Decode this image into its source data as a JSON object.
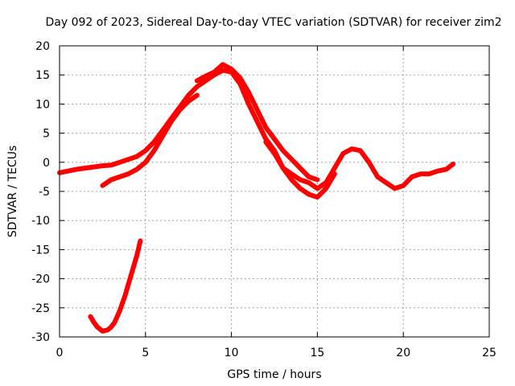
{
  "chart_data": {
    "type": "line",
    "title": "Day 092 of 2023, Sidereal Day-to-day VTEC variation (SDTVAR) for receiver zim2",
    "xlabel": "GPS time / hours",
    "ylabel": "SDTVAR / TECUs",
    "xlim": [
      0,
      25
    ],
    "ylim": [
      -30,
      20
    ],
    "xticks": [
      0,
      5,
      10,
      15,
      20,
      25
    ],
    "yticks": [
      -30,
      -25,
      -20,
      -15,
      -10,
      -5,
      0,
      5,
      10,
      15,
      20
    ],
    "grid": true,
    "color": "#ff0000",
    "series": [
      {
        "name": "track-main",
        "x": [
          0,
          0.5,
          1,
          1.5,
          2,
          2.5,
          3,
          3.5,
          4,
          4.5,
          5,
          5.5,
          6,
          6.5,
          7,
          7.5,
          8,
          8.5,
          9,
          9.5,
          10,
          10.5,
          11,
          11.5,
          12,
          12.5,
          13,
          13.5,
          14,
          14.5,
          15,
          15.5,
          16,
          16.5,
          17,
          17.5,
          18,
          18.5,
          19,
          19.5,
          20,
          20.5,
          21,
          21.5,
          22,
          22.5,
          22.9
        ],
        "y": [
          -1.8,
          -1.5,
          -1.2,
          -1.0,
          -0.8,
          -0.6,
          -0.5,
          0,
          0.5,
          1.0,
          2.0,
          3.5,
          5.5,
          7.5,
          9.5,
          11.5,
          13,
          14,
          15,
          15.8,
          15.5,
          13.5,
          10,
          7,
          4,
          2,
          -1,
          -2,
          -3,
          -3.5,
          -4.5,
          -3.5,
          -1,
          1.5,
          2.3,
          2.0,
          0,
          -2.5,
          -3.5,
          -4.5,
          -4,
          -2.5,
          -2,
          -2,
          -1.5,
          -1.2,
          -0.3
        ]
      },
      {
        "name": "track-lower",
        "x": [
          2.5,
          3,
          3.5,
          4,
          4.5,
          5,
          5.5,
          6,
          6.5,
          7,
          7.5,
          8
        ],
        "y": [
          -4,
          -3,
          -2.5,
          -2,
          -1.2,
          0,
          2,
          4.5,
          7,
          9,
          10.5,
          11.5
        ]
      },
      {
        "name": "track-upper",
        "x": [
          8,
          8.5,
          9,
          9.5,
          10,
          10.5,
          11,
          11.5,
          12,
          12.5,
          13,
          13.5,
          14,
          14.5,
          15
        ],
        "y": [
          14,
          14.8,
          15.5,
          16.8,
          16,
          14.5,
          12,
          9,
          6,
          4,
          2,
          0.5,
          -1,
          -2.5,
          -3
        ]
      },
      {
        "name": "track-dip",
        "x": [
          12,
          12.5,
          13,
          13.5,
          14,
          14.5,
          15,
          15.5,
          16
        ],
        "y": [
          3.5,
          1.5,
          -1,
          -3,
          -4.5,
          -5.5,
          -6,
          -4.5,
          -2
        ]
      },
      {
        "name": "track-early",
        "x": [
          1.8,
          2.0,
          2.2,
          2.5,
          2.8,
          3.0,
          3.2,
          3.5,
          3.8,
          4.0,
          4.2,
          4.5,
          4.7
        ],
        "y": [
          -26.5,
          -27.5,
          -28.3,
          -29,
          -28.8,
          -28.3,
          -27.5,
          -25.5,
          -23,
          -21,
          -19,
          -16,
          -13.5
        ]
      }
    ]
  }
}
